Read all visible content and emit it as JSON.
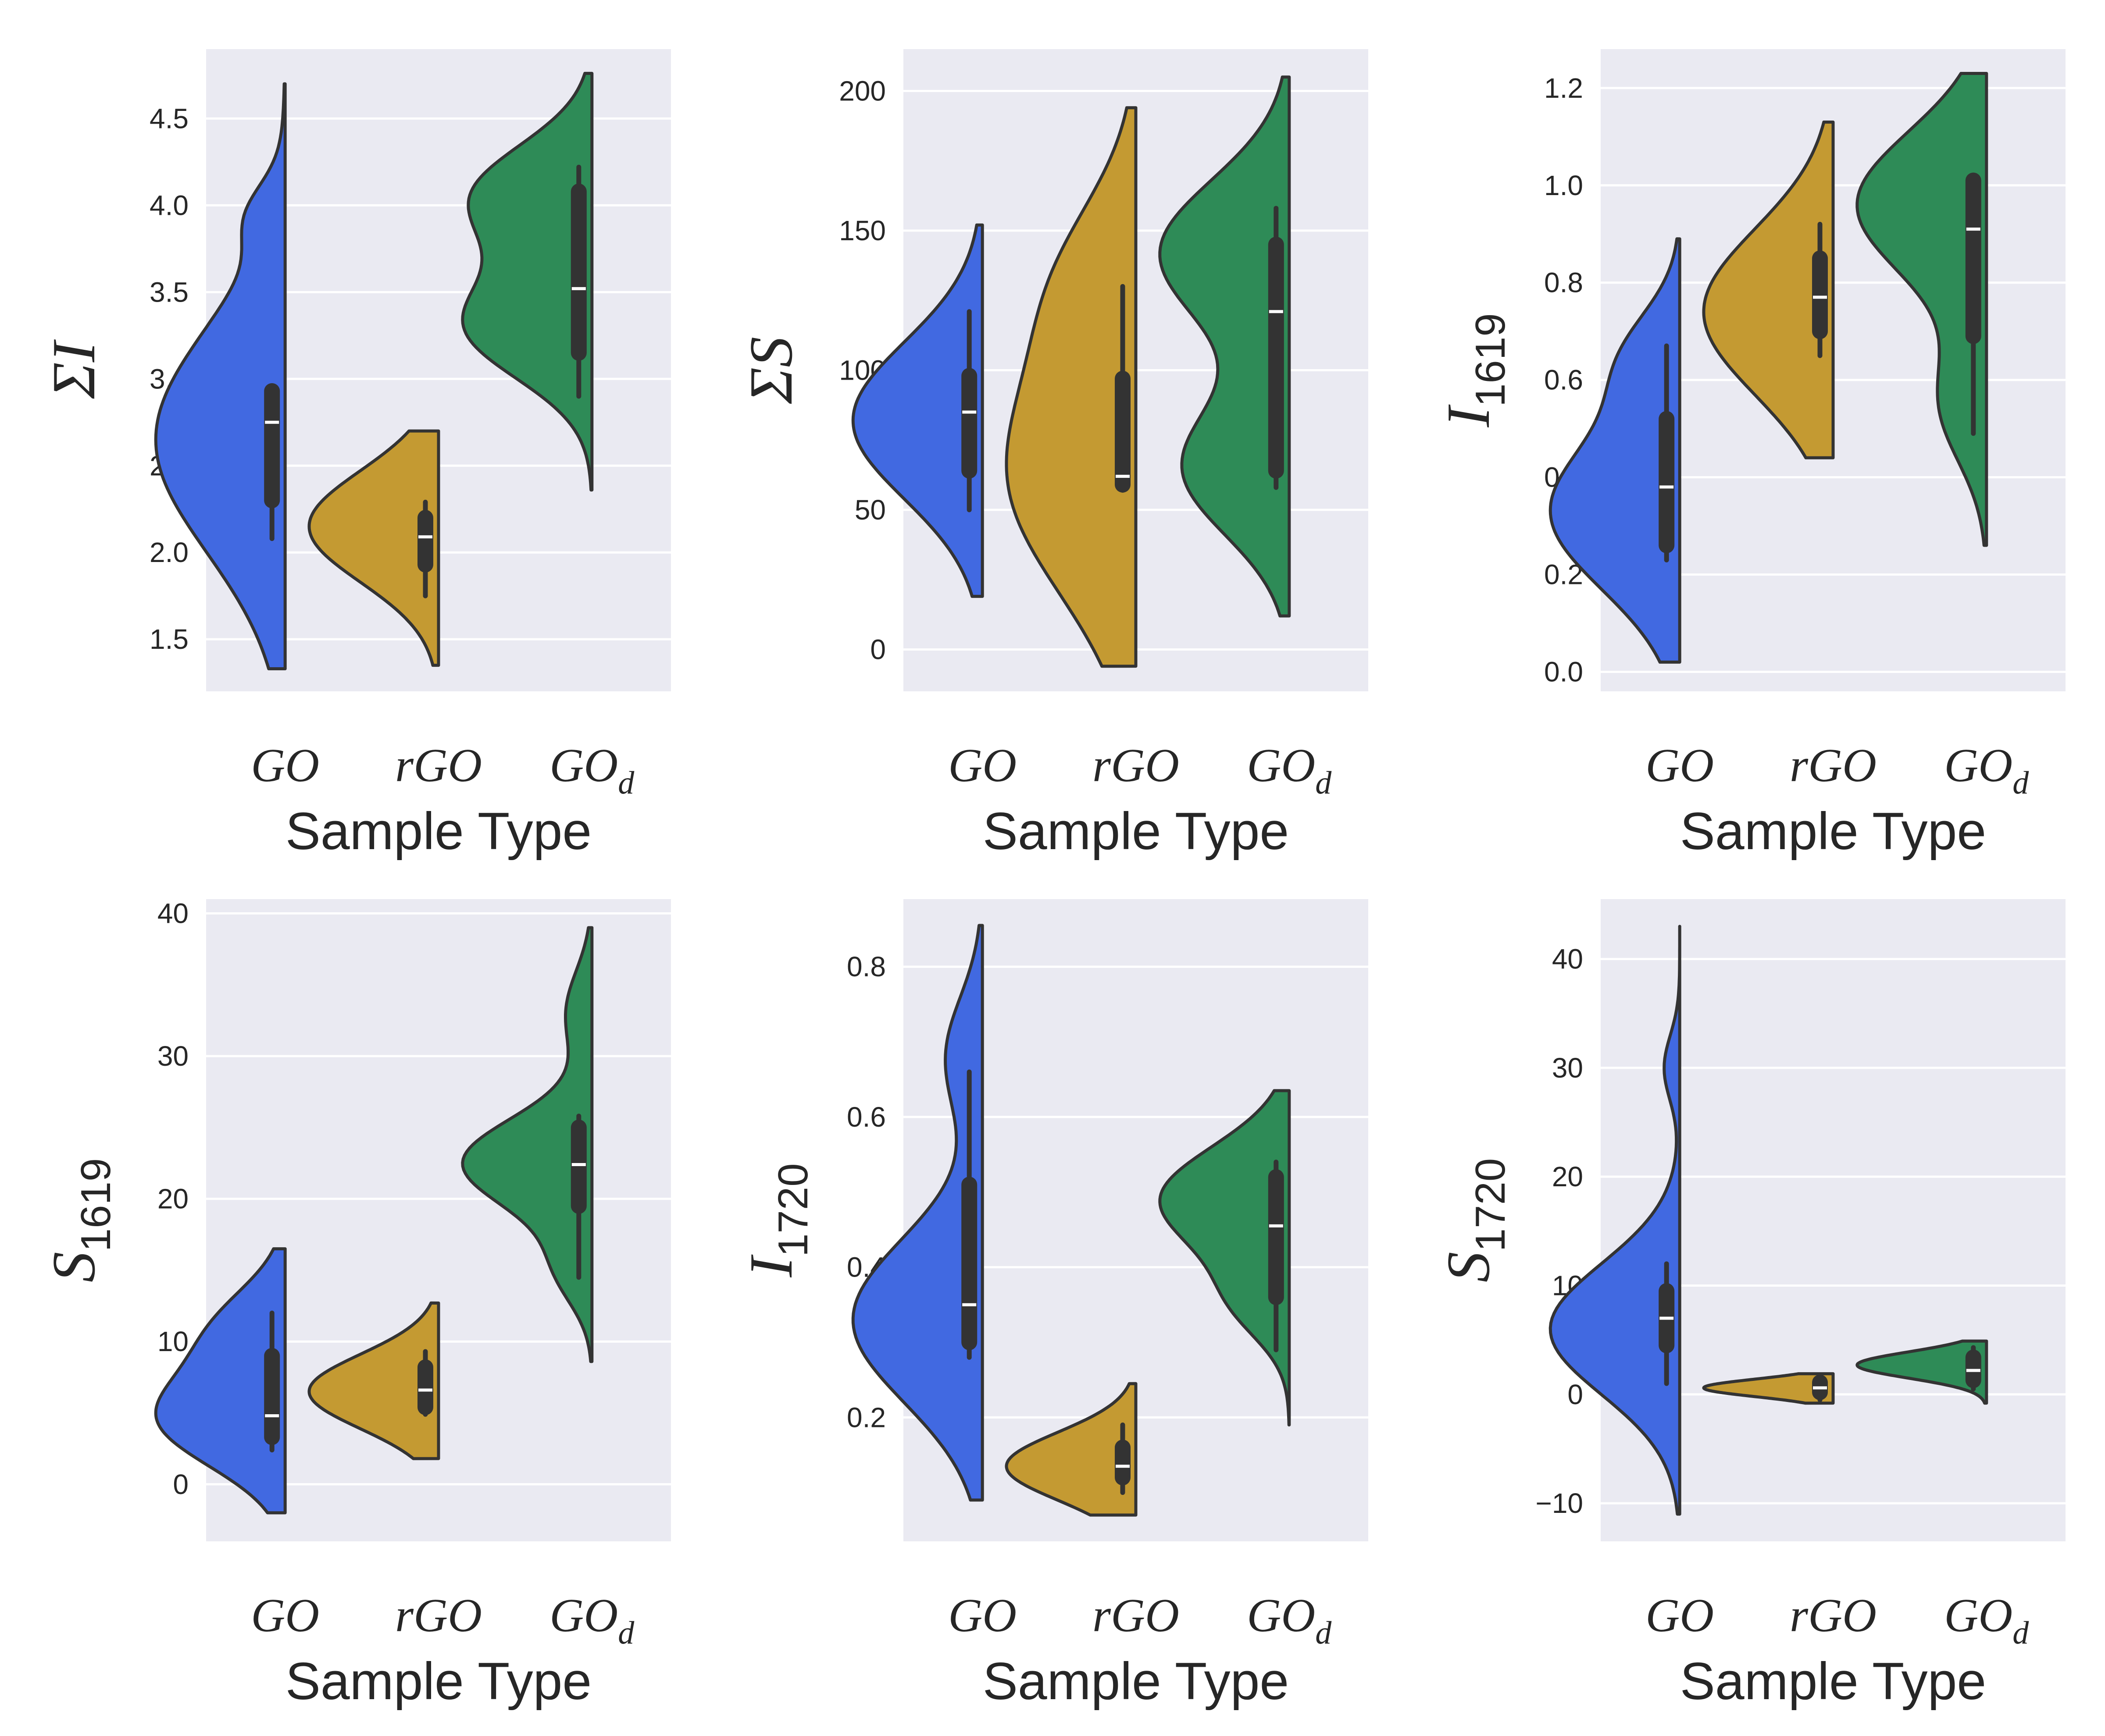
{
  "chart_data": [
    {
      "type": "violin",
      "ylabel": "ΣI",
      "ylabel_main": "ΣI",
      "ylabel_sub": "",
      "xlabel": "Sample Type",
      "categories": [
        "GO",
        "rGO",
        "GOd"
      ],
      "category_labels": [
        {
          "main": "GO",
          "sub": ""
        },
        {
          "main": "rGO",
          "sub": ""
        },
        {
          "main": "GO",
          "sub": "d"
        }
      ],
      "ylim": [
        1.2,
        4.9
      ],
      "yticks": [
        1.5,
        2.0,
        2.5,
        3.0,
        3.5,
        4.0,
        4.5
      ],
      "ytick_labels": [
        "1.5",
        "2.0",
        "2.5",
        "3.0",
        "3.5",
        "4.0",
        "4.5"
      ],
      "grid": true,
      "split": "left",
      "series": [
        {
          "color": "#4169e1",
          "min": 1.33,
          "max": 4.7,
          "peaks": [
            [
              2.65,
              0.65,
              1.0
            ],
            [
              3.95,
              0.18,
              0.18
            ]
          ],
          "q1": 2.3,
          "median": 2.75,
          "q3": 2.93,
          "whisker_low": 2.08,
          "whisker_high": 2.95
        },
        {
          "color": "#c49a32",
          "min": 1.35,
          "max": 2.7,
          "peaks": [
            [
              2.15,
              0.32,
              0.92
            ]
          ],
          "q1": 1.93,
          "median": 2.09,
          "q3": 2.2,
          "whisker_low": 1.75,
          "whisker_high": 2.29
        },
        {
          "color": "#2e8b57",
          "min": 2.36,
          "max": 4.76,
          "peaks": [
            [
              3.3,
              0.3,
              1.0
            ],
            [
              4.05,
              0.3,
              0.95
            ]
          ],
          "q1": 3.15,
          "median": 3.52,
          "q3": 4.08,
          "whisker_low": 2.9,
          "whisker_high": 4.22
        }
      ]
    },
    {
      "type": "violin",
      "ylabel": "ΣS",
      "ylabel_main": "ΣS",
      "ylabel_sub": "",
      "xlabel": "Sample Type",
      "categories": [
        "GO",
        "rGO",
        "GOd"
      ],
      "category_labels": [
        {
          "main": "GO",
          "sub": ""
        },
        {
          "main": "rGO",
          "sub": ""
        },
        {
          "main": "GO",
          "sub": "d"
        }
      ],
      "ylim": [
        -15,
        215
      ],
      "yticks": [
        0,
        50,
        100,
        150,
        200
      ],
      "ytick_labels": [
        "0",
        "50",
        "100",
        "150",
        "200"
      ],
      "grid": true,
      "split": "left",
      "series": [
        {
          "color": "#4169e1",
          "min": 19,
          "max": 152,
          "peaks": [
            [
              82,
              28,
              1.0
            ]
          ],
          "q1": 64,
          "median": 85,
          "q3": 98,
          "whisker_low": 50,
          "whisker_high": 121
        },
        {
          "color": "#c49a32",
          "min": -6,
          "max": 194,
          "peaks": [
            [
              62,
              42,
              1.0
            ],
            [
              135,
              30,
              0.45
            ]
          ],
          "q1": 59,
          "median": 62,
          "q3": 97,
          "whisker_low": 57,
          "whisker_high": 130
        },
        {
          "color": "#2e8b57",
          "min": 12,
          "max": 205,
          "peaks": [
            [
              65,
              24,
              0.78
            ],
            [
              142,
              26,
              0.95
            ]
          ],
          "q1": 64,
          "median": 121,
          "q3": 145,
          "whisker_low": 58,
          "whisker_high": 158
        }
      ]
    },
    {
      "type": "violin",
      "ylabel": "I1619",
      "ylabel_main": "I",
      "ylabel_sub": "1619",
      "xlabel": "Sample Type",
      "categories": [
        "GO",
        "rGO",
        "GOd"
      ],
      "category_labels": [
        {
          "main": "GO",
          "sub": ""
        },
        {
          "main": "rGO",
          "sub": ""
        },
        {
          "main": "GO",
          "sub": "d"
        }
      ],
      "ylim": [
        -0.04,
        1.28
      ],
      "yticks": [
        0.0,
        0.2,
        0.4,
        0.6,
        0.8,
        1.0,
        1.2
      ],
      "ytick_labels": [
        "0.0",
        "0.2",
        "0.4",
        "0.6",
        "0.8",
        "1.0",
        "1.2"
      ],
      "grid": true,
      "split": "left",
      "series": [
        {
          "color": "#4169e1",
          "min": 0.02,
          "max": 0.89,
          "peaks": [
            [
              0.33,
              0.16,
              1.0
            ],
            [
              0.65,
              0.1,
              0.35
            ]
          ],
          "q1": 0.26,
          "median": 0.38,
          "q3": 0.52,
          "whisker_low": 0.23,
          "whisker_high": 0.67
        },
        {
          "color": "#c49a32",
          "min": 0.44,
          "max": 1.13,
          "peaks": [
            [
              0.74,
              0.17,
              1.0
            ]
          ],
          "q1": 0.7,
          "median": 0.77,
          "q3": 0.85,
          "whisker_low": 0.65,
          "whisker_high": 0.92
        },
        {
          "color": "#2e8b57",
          "min": 0.26,
          "max": 1.23,
          "peaks": [
            [
              0.96,
              0.15,
              1.0
            ],
            [
              0.55,
              0.12,
              0.35
            ]
          ],
          "q1": 0.69,
          "median": 0.91,
          "q3": 1.01,
          "whisker_low": 0.49,
          "whisker_high": 1.02
        }
      ]
    },
    {
      "type": "violin",
      "ylabel": "S1619",
      "ylabel_main": "S",
      "ylabel_sub": "1619",
      "xlabel": "Sample Type",
      "categories": [
        "GO",
        "rGO",
        "GOd"
      ],
      "category_labels": [
        {
          "main": "GO",
          "sub": ""
        },
        {
          "main": "rGO",
          "sub": ""
        },
        {
          "main": "GO",
          "sub": "d"
        }
      ],
      "ylim": [
        -4,
        41
      ],
      "yticks": [
        0,
        10,
        20,
        30,
        40
      ],
      "ytick_labels": [
        "0",
        "10",
        "20",
        "30",
        "40"
      ],
      "grid": true,
      "split": "left",
      "series": [
        {
          "color": "#4169e1",
          "min": -2,
          "max": 16.5,
          "peaks": [
            [
              4.5,
              3.3,
              1.0
            ],
            [
              11,
              3,
              0.5
            ]
          ],
          "q1": 3.3,
          "median": 4.8,
          "q3": 9,
          "whisker_low": 2.4,
          "whisker_high": 12
        },
        {
          "color": "#c49a32",
          "min": 1.8,
          "max": 12.7,
          "peaks": [
            [
              6.5,
              2.6,
              1.0
            ]
          ],
          "q1": 5.4,
          "median": 6.6,
          "q3": 8.2,
          "whisker_low": 4.9,
          "whisker_high": 9.3
        },
        {
          "color": "#2e8b57",
          "min": 8.6,
          "max": 39,
          "peaks": [
            [
              22.5,
              3.2,
              1.0
            ],
            [
              15,
              2.5,
              0.25
            ],
            [
              33,
              3,
              0.2
            ]
          ],
          "q1": 19.5,
          "median": 22.4,
          "q3": 25,
          "whisker_low": 14.5,
          "whisker_high": 25.8
        }
      ]
    },
    {
      "type": "violin",
      "ylabel": "I1720",
      "ylabel_main": "I",
      "ylabel_sub": "1720",
      "xlabel": "Sample Type",
      "categories": [
        "GO",
        "rGO",
        "GOd"
      ],
      "category_labels": [
        {
          "main": "GO",
          "sub": ""
        },
        {
          "main": "rGO",
          "sub": ""
        },
        {
          "main": "GO",
          "sub": "d"
        }
      ],
      "ylim": [
        0.035,
        0.89
      ],
      "yticks": [
        0.2,
        0.4,
        0.6,
        0.8
      ],
      "ytick_labels": [
        "0.2",
        "0.4",
        "0.6",
        "0.8"
      ],
      "grid": true,
      "split": "left",
      "series": [
        {
          "color": "#4169e1",
          "min": 0.09,
          "max": 0.855,
          "peaks": [
            [
              0.33,
              0.11,
              1.0
            ],
            [
              0.68,
              0.08,
              0.28
            ]
          ],
          "q1": 0.3,
          "median": 0.35,
          "q3": 0.51,
          "whisker_low": 0.28,
          "whisker_high": 0.66
        },
        {
          "color": "#c49a32",
          "min": 0.07,
          "max": 0.245,
          "peaks": [
            [
              0.135,
              0.045,
              1.0
            ]
          ],
          "q1": 0.12,
          "median": 0.135,
          "q3": 0.16,
          "whisker_low": 0.1,
          "whisker_high": 0.19
        },
        {
          "color": "#2e8b57",
          "min": 0.19,
          "max": 0.635,
          "peaks": [
            [
              0.49,
              0.07,
              1.0
            ],
            [
              0.35,
              0.05,
              0.35
            ]
          ],
          "q1": 0.36,
          "median": 0.455,
          "q3": 0.52,
          "whisker_low": 0.29,
          "whisker_high": 0.54
        }
      ]
    },
    {
      "type": "violin",
      "ylabel": "S1720",
      "ylabel_main": "S",
      "ylabel_sub": "1720",
      "xlabel": "Sample Type",
      "categories": [
        "GO",
        "rGO",
        "GOd"
      ],
      "category_labels": [
        {
          "main": "GO",
          "sub": ""
        },
        {
          "main": "rGO",
          "sub": ""
        },
        {
          "main": "GO",
          "sub": "d"
        }
      ],
      "ylim": [
        -13.5,
        45.5
      ],
      "yticks": [
        -10,
        0,
        10,
        20,
        30,
        40
      ],
      "ytick_labels": [
        "−10",
        "0",
        "10",
        "20",
        "30",
        "40"
      ],
      "grid": true,
      "split": "left",
      "series": [
        {
          "color": "#4169e1",
          "min": -11,
          "max": 43,
          "peaks": [
            [
              6,
              6,
              1.0
            ],
            [
              30,
              3,
              0.12
            ]
          ],
          "q1": 4.5,
          "median": 7,
          "q3": 9.5,
          "whisker_low": 1,
          "whisker_high": 12
        },
        {
          "color": "#c49a32",
          "min": -0.8,
          "max": 1.9,
          "peaks": [
            [
              0.6,
              0.8,
              1.0
            ]
          ],
          "q1": 0.2,
          "median": 0.6,
          "q3": 1.1,
          "whisker_low": -0.5,
          "whisker_high": 1.8
        },
        {
          "color": "#2e8b57",
          "min": -0.8,
          "max": 4.9,
          "peaks": [
            [
              2.7,
              1.2,
              1.0
            ]
          ],
          "q1": 1.3,
          "median": 2.2,
          "q3": 3.4,
          "whisker_low": 0.5,
          "whisker_high": 4.3
        }
      ]
    }
  ]
}
